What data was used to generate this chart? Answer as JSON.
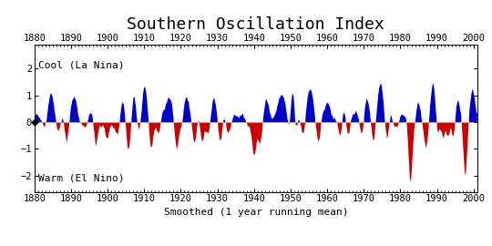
{
  "title": "Southern Oscillation Index",
  "xlabel": "Smoothed (1 year running mean)",
  "label_cool": "Cool (La Nina)",
  "label_warm": "Warm (El Nino)",
  "color_positive": "#0000cc",
  "color_negative": "#cc0000",
  "color_zero_line": "#aaaaaa",
  "background_color": "#ffffff",
  "xlim": [
    1880,
    2001
  ],
  "ylim": [
    -2.6,
    2.9
  ],
  "yticks": [
    -2,
    -1,
    0,
    1,
    2
  ],
  "xticks": [
    1880,
    1890,
    1900,
    1910,
    1920,
    1930,
    1940,
    1950,
    1960,
    1970,
    1980,
    1990,
    2000
  ],
  "title_fontsize": 13,
  "label_fontsize": 8,
  "tick_fontsize": 7.5
}
